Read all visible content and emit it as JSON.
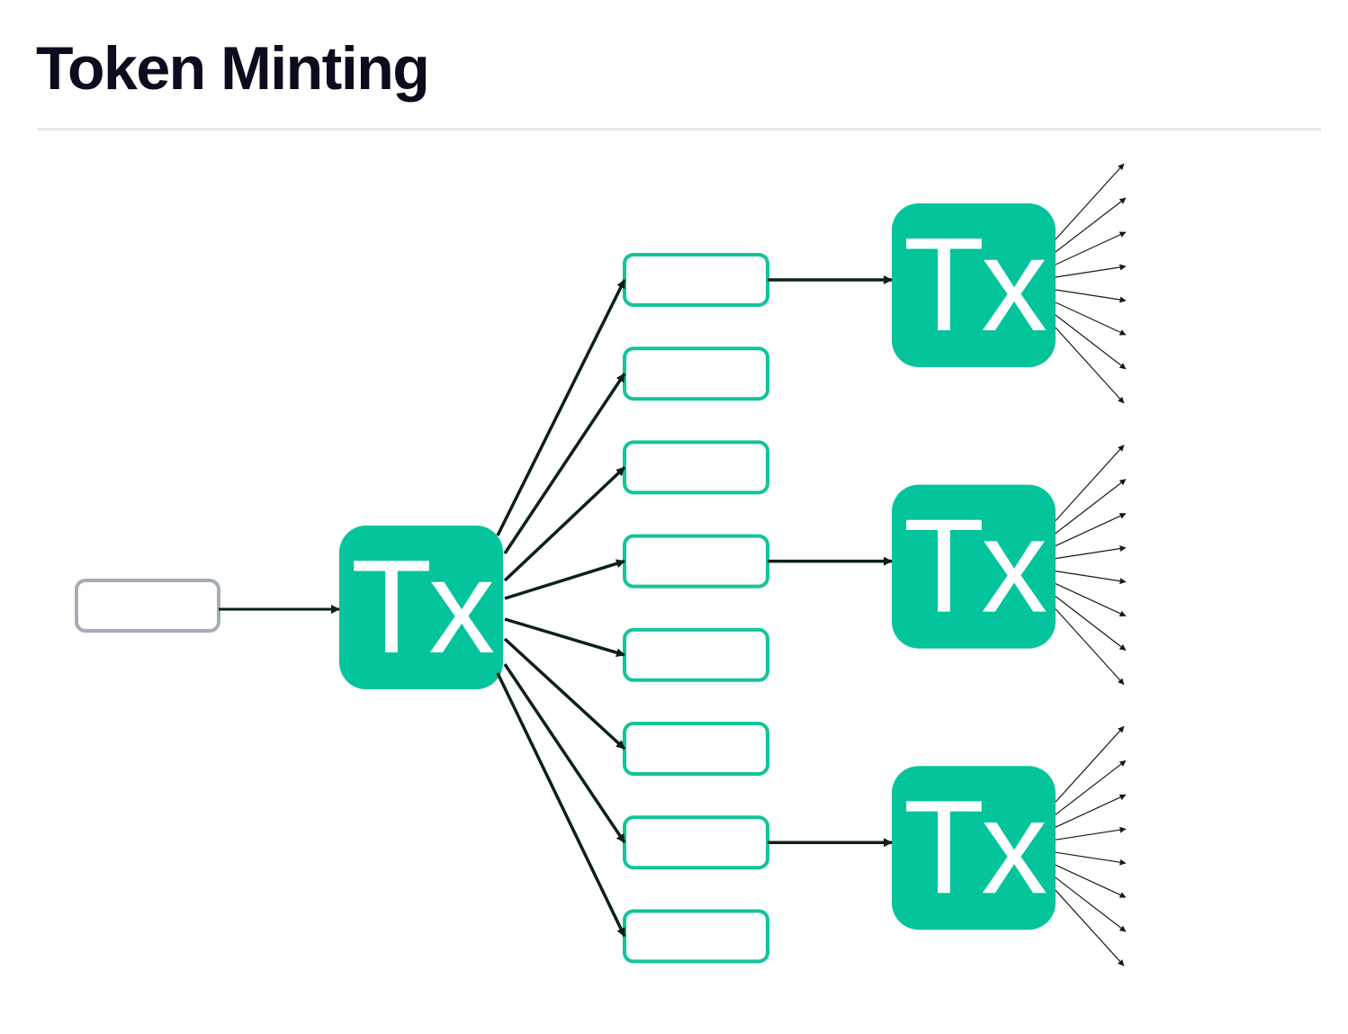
{
  "page": {
    "title": "Token Minting"
  },
  "diagram": {
    "colors": {
      "tx_fill": "#04c49c",
      "tx_text": "#ffffff",
      "output_stroke": "#13c49b",
      "input_stroke": "#a5adb6",
      "arrow": "#0c2018"
    },
    "root_input": {
      "label": ""
    },
    "root_tx": {
      "label": "Tx"
    },
    "outputs": [
      {
        "label": "",
        "spends_to_tx": 0
      },
      {
        "label": ""
      },
      {
        "label": ""
      },
      {
        "label": "",
        "spends_to_tx": 1
      },
      {
        "label": ""
      },
      {
        "label": ""
      },
      {
        "label": "",
        "spends_to_tx": 2
      },
      {
        "label": ""
      }
    ],
    "child_txs": [
      {
        "label": "Tx",
        "fanout_outputs": 8
      },
      {
        "label": "Tx",
        "fanout_outputs": 8
      },
      {
        "label": "Tx",
        "fanout_outputs": 8
      }
    ]
  }
}
